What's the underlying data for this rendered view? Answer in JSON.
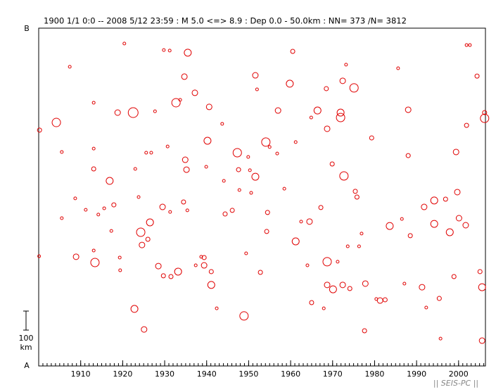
{
  "chart_data": {
    "type": "scatter",
    "title": "1900 1/1 0:0 -- 2008 5/12 23:59  : M 5.0 <=> 8.9   :  Dep 0.0 - 50.0km :  NN= 373 /N= 3812",
    "color": "#e00000",
    "xlim": [
      1900,
      2006.4
    ],
    "ylim": [
      0,
      1776
    ],
    "xticks": [
      1910,
      1920,
      1930,
      1940,
      1950,
      1960,
      1970,
      1980,
      1990,
      2000
    ],
    "y_end_labels": {
      "bottom": "A",
      "top": "B"
    },
    "scale_bar": {
      "value": 100,
      "unit": "km"
    },
    "x": [
      1900.2,
      1900.1,
      1904.2,
      1905.5,
      1905.5,
      1907.4,
      1908.7,
      1908.9,
      1911.2,
      1913.1,
      1913.1,
      1913.1,
      1913.1,
      1913.4,
      1914.2,
      1915.6,
      1916.9,
      1917.3,
      1917.9,
      1918.8,
      1919.3,
      1919.4,
      1920.4,
      1922.5,
      1923.0,
      1922.8,
      1923.8,
      1924.3,
      1924.6,
      1925.1,
      1925.6,
      1926.5,
      1926.0,
      1926.8,
      1927.7,
      1928.5,
      1929.5,
      1929.8,
      1929.7,
      1930.7,
      1931.2,
      1931.5,
      1931.3,
      1932.7,
      1933.2,
      1933.7,
      1934.5,
      1934.9,
      1935.2,
      1935.5,
      1935.4,
      1934.7,
      1937.2,
      1937.4,
      1938.7,
      1939.4,
      1939.4,
      1939.9,
      1940.6,
      1940.2,
      1941.1,
      1941.1,
      1942.4,
      1943.7,
      1944.4,
      1944.1,
      1946.1,
      1947.3,
      1947.6,
      1947.8,
      1948.9,
      1949.4,
      1949.9,
      1950.3,
      1950.6,
      1951.6,
      1951.6,
      1952.0,
      1952.8,
      1954.1,
      1954.5,
      1954.3,
      1955.0,
      1957.0,
      1956.8,
      1958.5,
      1959.8,
      1960.5,
      1961.2,
      1961.2,
      1962.5,
      1964.0,
      1964.5,
      1964.9,
      1965.0,
      1966.4,
      1967.2,
      1967.9,
      1968.5,
      1968.7,
      1968.7,
      1968.7,
      1969.9,
      1970.1,
      1971.2,
      1971.9,
      1971.9,
      1972.4,
      1972.4,
      1972.7,
      1973.2,
      1973.6,
      1974.1,
      1975.1,
      1975.4,
      1975.8,
      1976.3,
      1976.9,
      1977.6,
      1977.8,
      1979.3,
      1980.4,
      1981.3,
      1982.5,
      1983.6,
      1985.6,
      1986.5,
      1987.1,
      1988.0,
      1988.0,
      1988.5,
      1991.3,
      1991.8,
      1992.3,
      1994.2,
      1994.2,
      1995.4,
      1995.7,
      1996.9,
      1997.9,
      1998.9,
      1999.4,
      1999.7,
      2000.1,
      2001.7,
      2001.9,
      2001.9,
      2002.7,
      2004.4,
      2005.1,
      2005.6,
      2005.6,
      2006.2,
      2006.2
    ],
    "y": [
      1240,
      577,
      1280,
      1125,
      777,
      1573,
      881,
      574,
      821,
      1384,
      1143,
      1036,
      607,
      544,
      796,
      829,
      973,
      710,
      847,
      1332,
      570,
      503,
      1695,
      1332,
      1036,
      300,
      888,
      703,
      636,
      192,
      1121,
      755,
      666,
      1121,
      1339,
      525,
      836,
      1661,
      474,
      1154,
      1658,
      470,
      810,
      1384,
      496,
      1399,
      862,
      1084,
      1032,
      1647,
      818,
      1521,
      1436,
      529,
      574,
      570,
      529,
      1047,
      1362,
      1184,
      426,
      496,
      303,
      1273,
      799,
      973,
      818,
      1121,
      1032,
      925,
      263,
      592,
      1099,
      1029,
      910,
      995,
      1528,
      1454,
      492,
      1177,
      807,
      707,
      1151,
      1343,
      1117,
      932,
      1484,
      1654,
      1177,
      655,
      759,
      529,
      759,
      1306,
      333,
      1343,
      833,
      303,
      1458,
      1247,
      548,
      426,
      1062,
      403,
      548,
      1332,
      1306,
      1499,
      426,
      999,
      1584,
      629,
      407,
      1462,
      918,
      888,
      629,
      696,
      185,
      433,
      1199,
      352,
      344,
      348,
      736,
      1565,
      773,
      433,
      1347,
      1106,
      685,
      414,
      836,
      307,
      870,
      747,
      355,
      144,
      877,
      703,
      470,
      1125,
      914,
      777,
      740,
      1265,
      1687,
      1687,
      1524,
      496,
      414,
      133,
      1302,
      1332
    ],
    "sizes": [
      5.5,
      5.0,
      7.0,
      5.0,
      5.0,
      5.0,
      5.0,
      6.0,
      5.0,
      5.0,
      5.0,
      5.5,
      5.0,
      7.0,
      5.0,
      5.0,
      6.5,
      5.0,
      5.5,
      6.0,
      5.0,
      5.0,
      5.0,
      7.5,
      5.0,
      6.5,
      5.0,
      7.0,
      6.0,
      6.0,
      5.0,
      6.5,
      5.5,
      5.0,
      5.0,
      6.0,
      6.0,
      5.0,
      5.5,
      5.0,
      5.0,
      5.5,
      5.0,
      7.0,
      6.5,
      5.0,
      5.5,
      6.0,
      6.0,
      6.5,
      5.0,
      6.0,
      6.0,
      5.0,
      5.0,
      5.5,
      6.0,
      5.0,
      6.0,
      6.5,
      6.5,
      5.5,
      5.0,
      5.0,
      5.5,
      5.0,
      5.5,
      7.0,
      5.5,
      5.0,
      7.0,
      5.0,
      5.0,
      5.0,
      5.0,
      6.5,
      6.0,
      5.0,
      5.5,
      7.0,
      5.5,
      5.5,
      5.0,
      6.0,
      5.0,
      5.0,
      6.5,
      5.5,
      5.0,
      6.5,
      5.0,
      5.0,
      6.0,
      5.0,
      5.5,
      6.5,
      5.5,
      5.0,
      5.5,
      6.0,
      7.0,
      6.0,
      5.5,
      6.5,
      5.0,
      6.5,
      7.0,
      6.0,
      6.0,
      7.0,
      5.0,
      5.0,
      5.5,
      7.0,
      5.5,
      5.5,
      5.0,
      5.0,
      5.5,
      6.0,
      5.5,
      5.0,
      6.0,
      5.5,
      6.5,
      5.0,
      5.0,
      5.0,
      6.0,
      5.5,
      5.5,
      6.0,
      6.0,
      5.0,
      6.5,
      6.5,
      5.5,
      5.0,
      5.5,
      6.5,
      5.5,
      6.0,
      6.0,
      6.0,
      6.0,
      5.5,
      5.0,
      5.0,
      5.5,
      5.5,
      6.5,
      6.0,
      7.0,
      5.5
    ]
  },
  "footer": "|| SEIS-PC ||"
}
